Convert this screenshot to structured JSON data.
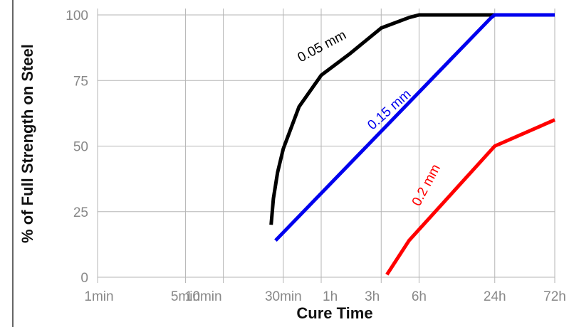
{
  "chart_data": {
    "type": "line",
    "title": "",
    "xlabel": "Cure Time",
    "ylabel": "% of Full Strength on Steel",
    "x_scale": "log",
    "x_unit": "minutes",
    "xlim": [
      1,
      4320
    ],
    "ylim": [
      0,
      100
    ],
    "grid": true,
    "legend": "none",
    "x_ticks": [
      {
        "value": 1,
        "label": "1min"
      },
      {
        "value": 5,
        "label": "5min"
      },
      {
        "value": 10,
        "label": "10min"
      },
      {
        "value": 30,
        "label": "30min"
      },
      {
        "value": 60,
        "label": "1h"
      },
      {
        "value": 180,
        "label": "3h"
      },
      {
        "value": 360,
        "label": "6h"
      },
      {
        "value": 1440,
        "label": "24h"
      },
      {
        "value": 4320,
        "label": "72h"
      }
    ],
    "y_ticks": [
      {
        "value": 0,
        "label": "0"
      },
      {
        "value": 25,
        "label": "25"
      },
      {
        "value": 50,
        "label": "50"
      },
      {
        "value": 75,
        "label": "75"
      },
      {
        "value": 100,
        "label": "100"
      }
    ],
    "series": [
      {
        "name": "0.05 mm",
        "color": "#000000",
        "x": [
          24,
          25,
          27,
          30,
          40,
          60,
          100,
          180,
          300,
          360,
          500,
          1000,
          1440,
          2500,
          4320
        ],
        "y": [
          20,
          30,
          40,
          49,
          65,
          77,
          85,
          95,
          99,
          100,
          100,
          100,
          100,
          100,
          100
        ]
      },
      {
        "name": "0.15 mm",
        "color": "#0000ee",
        "x": [
          26,
          1350,
          1440,
          4320
        ],
        "y": [
          14,
          99,
          100,
          100
        ]
      },
      {
        "name": "0.2 mm",
        "color": "#ff0000",
        "x": [
          200,
          300,
          1440,
          4320
        ],
        "y": [
          1,
          14,
          50,
          60
        ]
      }
    ]
  }
}
